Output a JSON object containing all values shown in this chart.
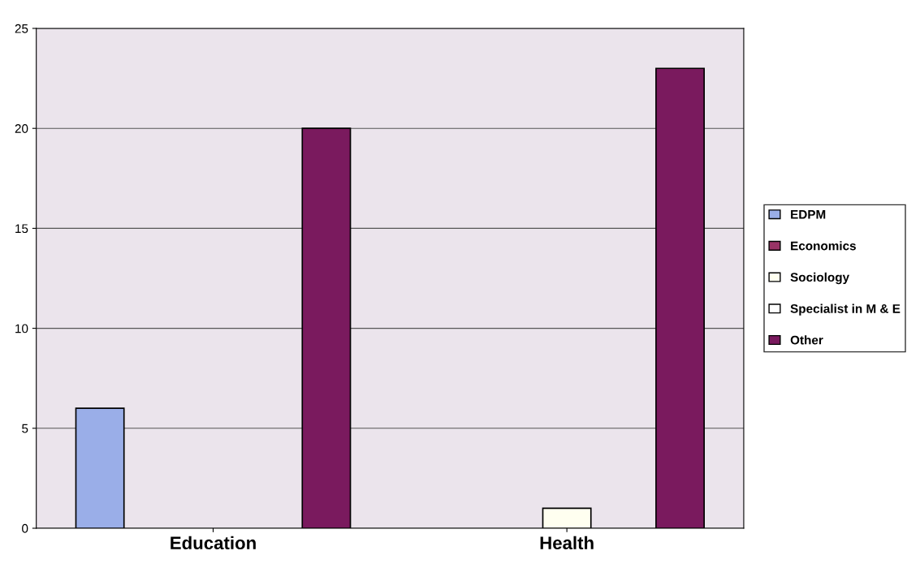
{
  "chart_data": {
    "type": "bar",
    "categories": [
      "Education",
      "Health"
    ],
    "series": [
      {
        "name": "EDPM",
        "color": "#9aaee8",
        "values": [
          6,
          null
        ]
      },
      {
        "name": "Economics",
        "color": "#993366",
        "values": [
          null,
          null
        ]
      },
      {
        "name": "Sociology",
        "color": "#fffff0",
        "values": [
          null,
          1
        ]
      },
      {
        "name": "Specialist in M & E",
        "color": "#ffffff",
        "values": [
          null,
          null
        ]
      },
      {
        "name": "Other",
        "color": "#7a1a5e",
        "values": [
          20,
          23
        ]
      }
    ],
    "ylim": [
      0,
      25
    ],
    "yticks": [
      0,
      5,
      10,
      15,
      20,
      25
    ],
    "grid": "y",
    "legend": "right"
  }
}
